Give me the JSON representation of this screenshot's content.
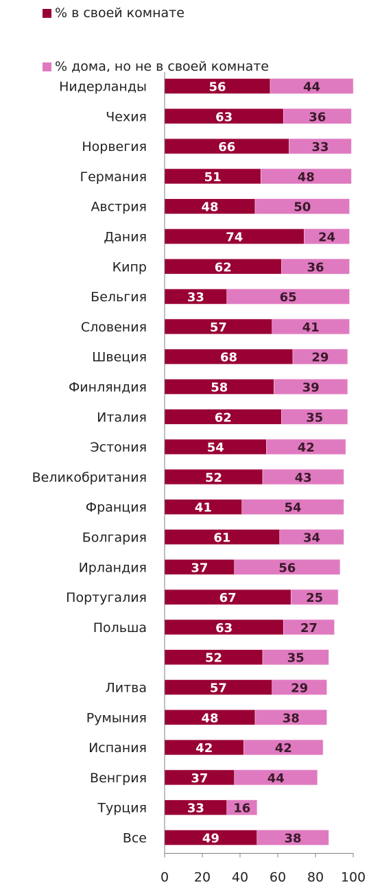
{
  "legend": [
    {
      "label": "% в своей комнате",
      "color": "#990033"
    },
    {
      "label": "% дома, но не в своей комнате",
      "color": "#E07AC0"
    }
  ],
  "chart_data": {
    "type": "bar",
    "orientation": "horizontal",
    "stacked": true,
    "categories": [
      "Нидерланды",
      "Чехия",
      "Норвегия",
      "Германия",
      "Австрия",
      "Дания",
      "Кипр",
      "Бельгия",
      "Словения",
      "Швеция",
      "Финляндия",
      "Италия",
      "Эстония",
      "Великобритания",
      "Франция",
      "Болгария",
      "Ирландия",
      "Португалия",
      "Польша",
      "",
      "Литва",
      "Румыния",
      "Испания",
      "Венгрия",
      "Турция",
      "Все"
    ],
    "series": [
      {
        "name": "% в своей комнате",
        "color": "#990033",
        "values": [
          56,
          63,
          66,
          51,
          48,
          74,
          62,
          33,
          57,
          68,
          58,
          62,
          54,
          52,
          41,
          61,
          37,
          67,
          63,
          52,
          57,
          48,
          42,
          37,
          33,
          49
        ]
      },
      {
        "name": "% дома, но не в своей комнате",
        "color": "#E07AC0",
        "values": [
          44,
          36,
          33,
          48,
          50,
          24,
          36,
          65,
          41,
          29,
          39,
          35,
          42,
          43,
          54,
          34,
          56,
          25,
          27,
          35,
          29,
          38,
          42,
          44,
          16,
          38
        ]
      }
    ],
    "xlim": [
      0,
      100
    ],
    "xticks": [
      0,
      20,
      40,
      60,
      80,
      100
    ],
    "legend_position": "top-left",
    "grid": false
  }
}
